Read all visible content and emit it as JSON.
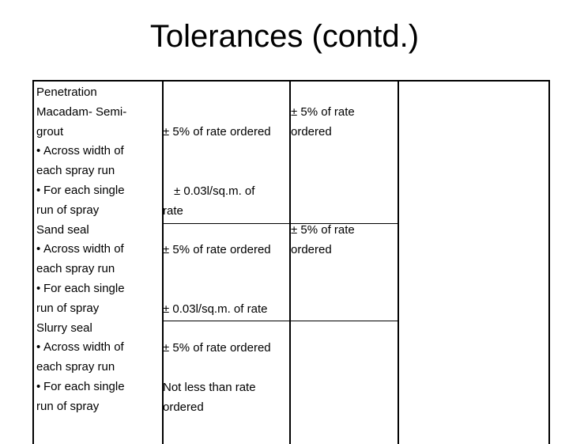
{
  "title": "Tolerances (contd.)",
  "bullet_glyph": "•",
  "rows": [
    {
      "heading_lines": [
        "Penetration",
        "Macadam- Semi-",
        "grout"
      ],
      "items": [
        {
          "lines": [
            "Across width of",
            "each spray run"
          ]
        },
        {
          "lines": [
            "For each single",
            "run of spray"
          ]
        }
      ],
      "col2": {
        "a": "± 5% of rate ordered",
        "b_lines": [
          "± 0.03l/sq.m. of",
          "rate"
        ]
      },
      "col3": {
        "lines": [
          "± 5% of rate",
          "ordered"
        ]
      }
    },
    {
      "heading_lines": [
        "Sand seal"
      ],
      "items": [
        {
          "lines": [
            "Across width of",
            "each spray run"
          ]
        },
        {
          "lines": [
            "For each single",
            "run of spray"
          ]
        }
      ],
      "col2": {
        "a": "± 5% of rate ordered",
        "b": "± 0.03l/sq.m. of rate"
      },
      "col3": {
        "lines": [
          "± 5% of rate",
          "ordered"
        ]
      }
    },
    {
      "heading_lines": [
        "Slurry seal"
      ],
      "items": [
        {
          "lines": [
            "Across width of",
            "each spray run"
          ]
        },
        {
          "lines": [
            "For each single",
            "run of spray"
          ]
        }
      ],
      "col2": {
        "a": "± 5% of rate ordered",
        "b_lines": [
          "Not less than rate",
          "ordered"
        ]
      }
    }
  ]
}
